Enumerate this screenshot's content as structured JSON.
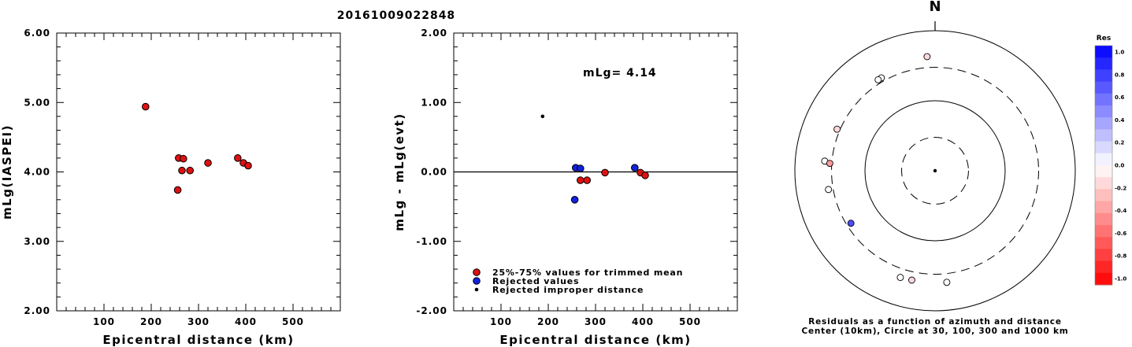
{
  "page": {
    "title": "20161009022848"
  },
  "chart_data": [
    {
      "type": "scatter",
      "xlabel": "Epicentral distance (km)",
      "ylabel": "mLg(IASPEI)",
      "xlim": [
        0,
        600
      ],
      "ylim": [
        2.0,
        6.0
      ],
      "xticks": [
        100,
        200,
        300,
        400,
        500
      ],
      "yticks": [
        2.0,
        3.0,
        4.0,
        5.0,
        6.0
      ],
      "ytick_labels": [
        "2.00",
        "3.00",
        "4.00",
        "5.00",
        "6.00"
      ],
      "marker_color": "#dd1111",
      "points": [
        {
          "x": 188,
          "y": 4.94
        },
        {
          "x": 258,
          "y": 4.2
        },
        {
          "x": 268,
          "y": 4.19
        },
        {
          "x": 265,
          "y": 4.02
        },
        {
          "x": 282,
          "y": 4.02
        },
        {
          "x": 256,
          "y": 3.74
        },
        {
          "x": 320,
          "y": 4.13
        },
        {
          "x": 383,
          "y": 4.2
        },
        {
          "x": 395,
          "y": 4.13
        },
        {
          "x": 405,
          "y": 4.09
        }
      ]
    },
    {
      "type": "scatter",
      "xlabel": "Epicentral distance (km)",
      "ylabel": "mLg - mLg(evt)",
      "xlim": [
        0,
        600
      ],
      "ylim": [
        -2.0,
        2.0
      ],
      "xticks": [
        100,
        200,
        300,
        400,
        500
      ],
      "yticks": [
        -2.0,
        -1.0,
        0.0,
        1.0,
        2.0
      ],
      "ytick_labels": [
        "-2.00",
        "-1.00",
        "0.00",
        "1.00",
        "2.00"
      ],
      "annotation": "mLg= 4.14",
      "reference_line_y": 0.0,
      "series": [
        {
          "name": "25%-75% values for trimmed mean",
          "color": "#dd1111",
          "marker": "circle",
          "points": [
            {
              "x": 268,
              "y": -0.12
            },
            {
              "x": 282,
              "y": -0.12
            },
            {
              "x": 320,
              "y": -0.01
            },
            {
              "x": 395,
              "y": -0.01
            },
            {
              "x": 405,
              "y": -0.05
            }
          ]
        },
        {
          "name": "Rejected values",
          "color": "#1122dd",
          "marker": "circle",
          "points": [
            {
              "x": 258,
              "y": 0.06
            },
            {
              "x": 268,
              "y": 0.05
            },
            {
              "x": 256,
              "y": -0.4
            },
            {
              "x": 383,
              "y": 0.06
            }
          ]
        },
        {
          "name": "Rejected improper distance",
          "color": "#000000",
          "marker": "dot",
          "points": [
            {
              "x": 188,
              "y": 0.8
            }
          ]
        }
      ]
    },
    {
      "type": "polar-scatter",
      "north_label": "N",
      "caption_line1": "Residuals as a function of azimuth and distance",
      "caption_line2": "Center (10km), Circle at 30, 100, 300 and 1000 km",
      "colorbar": {
        "title": "Res",
        "range": [
          -1.0,
          1.0
        ],
        "tick_labels": [
          "1.0",
          "0.8",
          "0.6",
          "0.4",
          "0.2",
          "0.0",
          "-0.2",
          "-0.4",
          "-0.6",
          "-0.8",
          "-1.0"
        ],
        "positive_color": "#0011ff",
        "negative_color": "#ff0000"
      },
      "rings_km": [
        30,
        100,
        300,
        1000
      ],
      "points": [
        {
          "azimuth": 356,
          "distance_km": 430,
          "residual": -0.15
        },
        {
          "azimuth": 330,
          "distance_km": 340,
          "residual": 0.0
        },
        {
          "azimuth": 328,
          "distance_km": 340,
          "residual": 0.0
        },
        {
          "azimuth": 293,
          "distance_km": 330,
          "residual": -0.15
        },
        {
          "azimuth": 275,
          "distance_km": 380,
          "residual": 0.0
        },
        {
          "azimuth": 274,
          "distance_km": 320,
          "residual": -0.4
        },
        {
          "azimuth": 260,
          "distance_km": 350,
          "residual": 0.0
        },
        {
          "azimuth": 238,
          "distance_km": 260,
          "residual": 0.7
        },
        {
          "azimuth": 198,
          "distance_km": 400,
          "residual": 0.0
        },
        {
          "azimuth": 192,
          "distance_km": 395,
          "residual": -0.15
        },
        {
          "azimuth": 174,
          "distance_km": 400,
          "residual": 0.0
        }
      ]
    }
  ]
}
